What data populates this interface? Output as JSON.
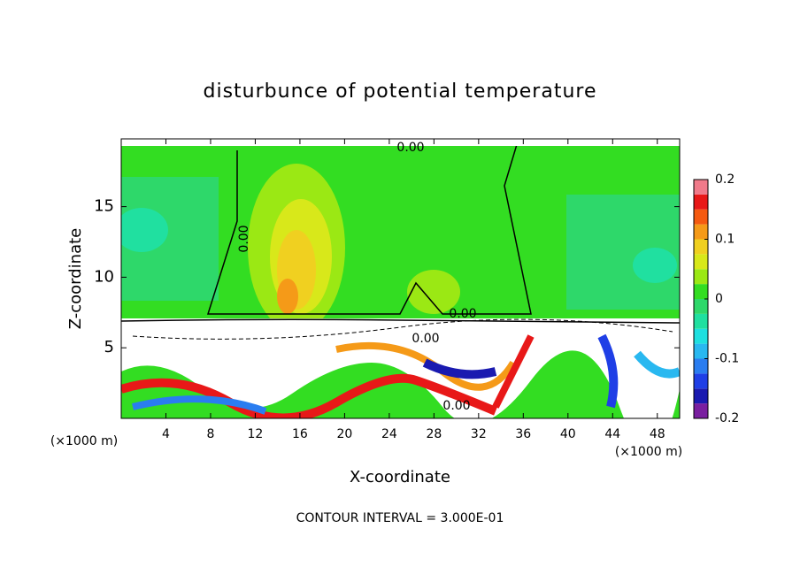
{
  "chart_data": {
    "type": "contour",
    "title": "disturbunce of potential temperature",
    "x_label": "X-coordinate",
    "y_label": "Z-coordinate",
    "x_unit": "(×1000 m)",
    "y_unit": "(×1000 m)",
    "xlim": [
      0,
      50
    ],
    "xticks": [
      4,
      8,
      12,
      16,
      20,
      24,
      28,
      32,
      36,
      40,
      44,
      48
    ],
    "ylim": [
      0,
      19.8
    ],
    "yticks": [
      5,
      10,
      15
    ],
    "colorbar_lim": [
      -0.2,
      0.2
    ],
    "colorbar_ticks": [
      0.2,
      0.1,
      0,
      -0.1,
      -0.2
    ],
    "colorbar_colors": [
      "#7a1fa0",
      "#1a1ab0",
      "#1f3fe6",
      "#2a7df0",
      "#29b8f0",
      "#1ee0e0",
      "#20e0a0",
      "#2ed86a",
      "#33dd22",
      "#9be814",
      "#d8e81a",
      "#f0d020",
      "#f59a18",
      "#f55a10",
      "#e81818",
      "#f07a8a"
    ],
    "contour_labels": [
      "0.00",
      "0.00",
      "0.00",
      "0.00",
      "0.00"
    ],
    "footnote": "CONTOUR INTERVAL = 3.000E-01"
  }
}
